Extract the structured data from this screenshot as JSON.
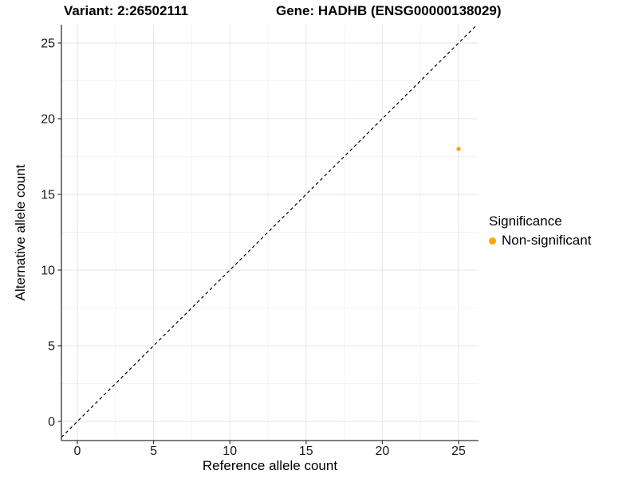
{
  "chart_data": {
    "type": "scatter",
    "titles": {
      "left": "Variant: 2:26502111",
      "right": "Gene: HADHB (ENSG00000138029)"
    },
    "xlabel": "Reference allele count",
    "ylabel": "Alternative allele count",
    "x_ticks": [
      0,
      5,
      10,
      15,
      20,
      25
    ],
    "y_ticks": [
      0,
      5,
      10,
      15,
      20,
      25
    ],
    "xlim": [
      -1.05,
      26.3
    ],
    "ylim": [
      -1.26,
      26.2
    ],
    "grid": true,
    "series": [
      {
        "name": "Non-significant",
        "color": "#FFA500",
        "points": [
          {
            "x": 25,
            "y": 18
          }
        ]
      }
    ],
    "reference_line": {
      "type": "identity",
      "slope": 1,
      "intercept": 0,
      "style": "dashed",
      "color": "#000000"
    },
    "legend": {
      "title": "Significance",
      "position": "right",
      "items": [
        {
          "label": "Non-significant",
          "color": "#FFA500"
        }
      ]
    },
    "colors": {
      "background": "#FFFFFF",
      "axis_line": "#333333",
      "tick_text": "#1A1A1A",
      "grid_major": "#E6E6E6",
      "grid_minor": "#F3F3F3"
    }
  }
}
